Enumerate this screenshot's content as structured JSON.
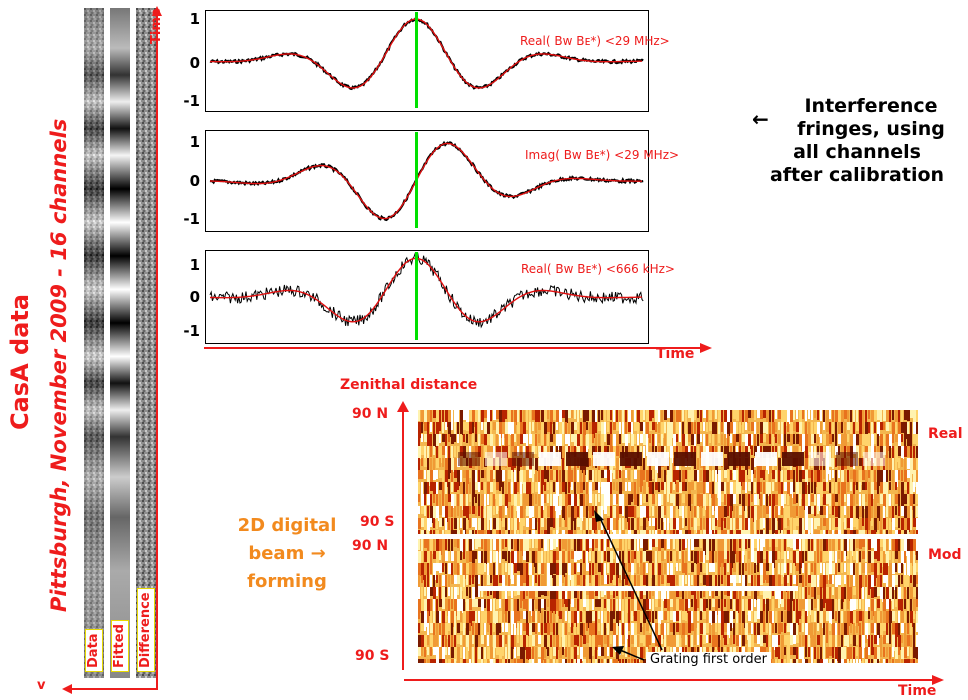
{
  "vertical_titles": {
    "casa": "CasA data",
    "pittsburgh": "Pittsburgh, November 2009 - 16 channels"
  },
  "strips": {
    "data_label": "Data",
    "fitted_label": "Fitted",
    "difference_label": "Difference",
    "time_axis_label": "Time",
    "bottom_arrow_glyph": "v"
  },
  "panels": [
    {
      "label": "Real( Bw Bᴇ*)  <29 MHz>",
      "ticks": [
        "1",
        "0",
        "-1"
      ]
    },
    {
      "label": "Imag( Bw Bᴇ*)  <29 MHz>",
      "ticks": [
        "1",
        "0",
        "-1"
      ]
    },
    {
      "label": "Real( Bw Bᴇ*)  <666 kHz>",
      "ticks": [
        "1",
        "0",
        "-1"
      ]
    }
  ],
  "panels_time_label": "Time",
  "interference_text": {
    "arrow": "←",
    "line1": "Interference",
    "line2": "fringes, using",
    "line3": "all channels",
    "line4": "after calibration"
  },
  "beam_forming": {
    "line1": "2D digital",
    "line2": "beam →",
    "line3": "forming"
  },
  "map": {
    "zenith_label": "Zenithal distance",
    "top_n": "90 N",
    "top_s": "90 S",
    "bottom_n": "90 N",
    "bottom_s": "90 S",
    "real_label": "Real",
    "mod_label": "Mod",
    "grating_label": "Grating first order",
    "time_label": "Time"
  },
  "colors": {
    "accent_red": "#ee1c1c",
    "orange": "#f28a1e",
    "fit_line": "#e01010",
    "marker_green": "#00e000"
  }
}
